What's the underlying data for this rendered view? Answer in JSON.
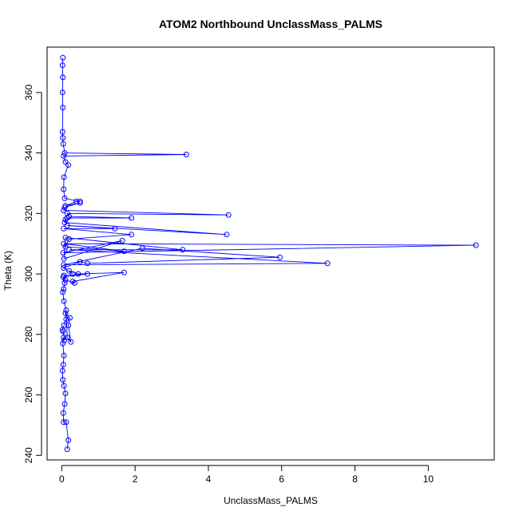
{
  "chart_data": {
    "type": "line",
    "title": "ATOM2 Northbound UnclassMass_PALMS",
    "xlabel": "UnclassMass_PALMS",
    "ylabel": "Theta (K)",
    "xlim": [
      -0.4,
      11.8
    ],
    "ylim": [
      238.5,
      375
    ],
    "xticks": [
      0,
      2,
      4,
      6,
      8,
      10
    ],
    "yticks": [
      240,
      260,
      280,
      300,
      320,
      340,
      360
    ],
    "grid": false,
    "legend": "none",
    "color": "#0000ff",
    "marker": "open-circle",
    "series": [
      {
        "x": [
          0.15,
          0.18,
          0.12,
          0.05,
          0.04,
          0.08,
          0.1,
          0.06,
          0.03,
          0.02,
          0.04,
          0.06,
          0.03,
          0.05,
          0.07,
          0.04,
          0.02,
          0.06,
          0.12,
          0.1,
          0.22,
          0.18,
          0.25,
          0.15,
          0.12,
          0.06,
          0.03,
          0.05,
          0.08,
          0.04,
          0.7,
          0.06,
          0.1,
          0.35,
          0.3,
          1.7,
          0.45,
          0.2,
          0.3,
          0.05,
          0.5,
          0.7,
          5.95,
          2.2,
          0.05,
          7.25,
          0.2,
          3.3,
          0.1,
          0.06,
          1.65,
          0.04,
          11.3,
          0.05,
          1.7,
          0.1,
          0.2,
          1.9,
          0.05,
          1.45,
          0.15,
          4.5,
          0.08,
          0.1,
          0.15,
          1.9,
          0.2,
          0.15,
          4.55,
          0.05,
          0.08,
          0.5,
          0.1,
          0.4,
          0.5,
          0.08,
          0.05,
          0.06,
          0.18,
          0.1,
          0.05,
          3.4,
          0.08,
          0.04,
          0.03,
          0.02,
          0.03,
          0.02,
          0.03,
          0.02,
          0.03
        ],
        "y": [
          242.0,
          245.0,
          251.0,
          251.0,
          254.0,
          257.0,
          260.5,
          263.0,
          265.0,
          268.0,
          270.0,
          273.0,
          277.0,
          279.0,
          278.0,
          281.0,
          281.5,
          283.0,
          285.0,
          287.0,
          285.5,
          283.0,
          277.5,
          279.0,
          288.0,
          291.0,
          294.0,
          295.0,
          297.0,
          299.0,
          300.0,
          299.5,
          298.0,
          297.0,
          297.5,
          300.5,
          300.0,
          301.0,
          300.0,
          302.0,
          304.0,
          303.5,
          305.5,
          308.5,
          303.0,
          303.5,
          308.0,
          308.0,
          312.0,
          305.0,
          311.0,
          307.0,
          309.5,
          310.0,
          307.5,
          309.0,
          311.5,
          313.0,
          315.0,
          315.0,
          316.0,
          313.0,
          317.0,
          318.0,
          318.5,
          318.5,
          319.0,
          320.0,
          319.5,
          321.0,
          322.0,
          323.5,
          322.5,
          324.0,
          324.0,
          325.0,
          328.0,
          332.0,
          336.0,
          337.0,
          339.0,
          339.5,
          340.0,
          343.0,
          345.0,
          347.0,
          355.0,
          360.0,
          365.0,
          369.0,
          371.5
        ]
      }
    ]
  }
}
